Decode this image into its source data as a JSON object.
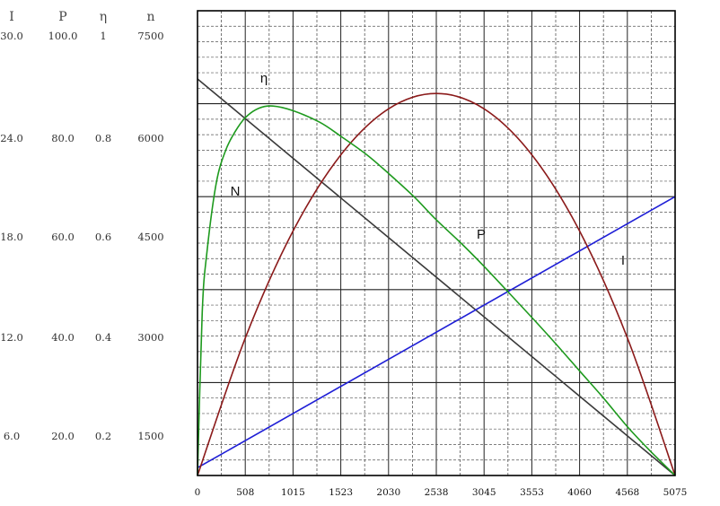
{
  "chart_data": {
    "type": "line",
    "title": "",
    "xlabel": "",
    "ylabel": "",
    "grid": true,
    "x_ticks": [
      "0",
      "508",
      "1015",
      "1523",
      "2030",
      "2538",
      "3045",
      "3553",
      "4060",
      "4568",
      "5075"
    ],
    "xlim": [
      0,
      5075
    ],
    "y_axes": [
      {
        "header": "I",
        "ticks": [
          "6.0",
          "12.0",
          "18.0",
          "24.0",
          "30.0"
        ],
        "ylim": [
          0,
          30
        ]
      },
      {
        "header": "P",
        "ticks": [
          "20.0",
          "40.0",
          "60.0",
          "80.0",
          "100.0"
        ],
        "ylim": [
          0,
          100
        ]
      },
      {
        "header": "η",
        "ticks": [
          "0.2",
          "0.4",
          "0.6",
          "0.8",
          "1"
        ],
        "ylim": [
          0,
          1
        ]
      },
      {
        "header": "n",
        "ticks": [
          "1500",
          "3000",
          "4500",
          "6000",
          "7500"
        ],
        "ylim": [
          0,
          7500
        ]
      }
    ],
    "series": [
      {
        "name": "N",
        "axis": "n",
        "color": "#3a3a3a",
        "x": [
          0,
          5075
        ],
        "y": [
          6400,
          0
        ]
      },
      {
        "name": "I",
        "axis": "I",
        "color": "#1f1fd6",
        "x": [
          0,
          5075
        ],
        "y": [
          0.5,
          18.0
        ]
      },
      {
        "name": "P",
        "axis": "P",
        "color": "#8b1a1a",
        "x": [
          0,
          508,
          1015,
          1523,
          2030,
          2538,
          3045,
          3553,
          4060,
          4568,
          5075
        ],
        "y": [
          0,
          29.6,
          52.6,
          69.0,
          78.9,
          82.2,
          78.9,
          69.0,
          52.6,
          29.6,
          0
        ]
      },
      {
        "name": "η",
        "axis": "η",
        "color": "#1e9a1e",
        "x": [
          0,
          50,
          100,
          200,
          300,
          400,
          508,
          650,
          800,
          1015,
          1300,
          1523,
          1800,
          2030,
          2300,
          2538,
          2800,
          3045,
          3300,
          3553,
          3800,
          4060,
          4300,
          4568,
          4800,
          5075
        ],
        "y": [
          0,
          0.35,
          0.48,
          0.63,
          0.7,
          0.74,
          0.77,
          0.79,
          0.795,
          0.785,
          0.76,
          0.73,
          0.69,
          0.65,
          0.6,
          0.55,
          0.5,
          0.45,
          0.395,
          0.34,
          0.285,
          0.225,
          0.17,
          0.105,
          0.055,
          0
        ]
      }
    ]
  }
}
